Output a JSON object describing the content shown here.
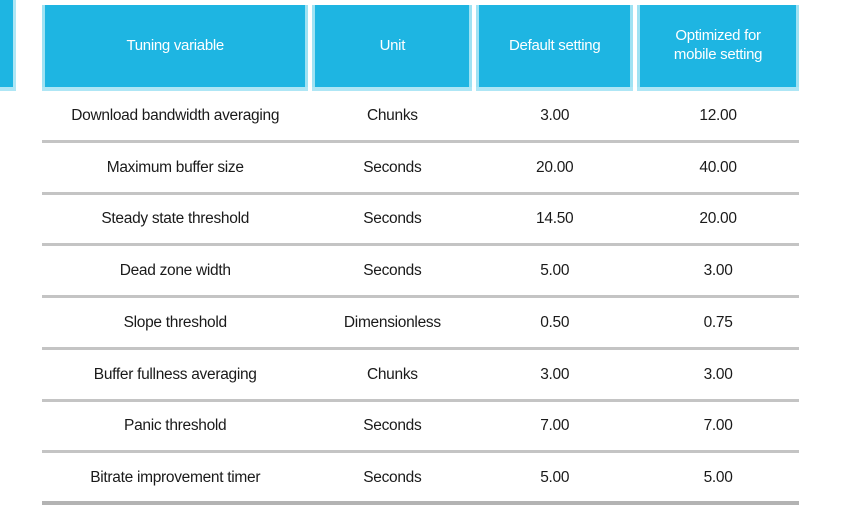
{
  "chart_data": {
    "type": "table",
    "columns": [
      "Tuning variable",
      "Unit",
      "Default setting",
      "Optimized for mobile setting"
    ],
    "rows": [
      [
        "Download bandwidth averaging",
        "Chunks",
        "3.00",
        "12.00"
      ],
      [
        "Maximum buffer size",
        "Seconds",
        "20.00",
        "40.00"
      ],
      [
        "Steady state threshold",
        "Seconds",
        "14.50",
        "20.00"
      ],
      [
        "Dead zone width",
        "Seconds",
        "5.00",
        "3.00"
      ],
      [
        "Slope threshold",
        "Dimensionless",
        "0.50",
        "0.75"
      ],
      [
        "Buffer fullness averaging",
        "Chunks",
        "3.00",
        "3.00"
      ],
      [
        "Panic threshold",
        "Seconds",
        "7.00",
        "7.00"
      ],
      [
        "Bitrate improvement timer",
        "Seconds",
        "5.00",
        "5.00"
      ]
    ],
    "layout": {
      "legend": "none",
      "grid": "horizontal-rules-between-rows",
      "header_style": "cyan-filled-cells-with-white-gaps"
    }
  },
  "colors": {
    "header_bg": "#1eb5e2",
    "header_edge": "#aee6f5",
    "header_text": "#ffffff",
    "row_divider": "#c4c4c4",
    "bottom_border": "#b3b3b3",
    "body_text": "#1a1a1a",
    "background": "#ffffff"
  }
}
